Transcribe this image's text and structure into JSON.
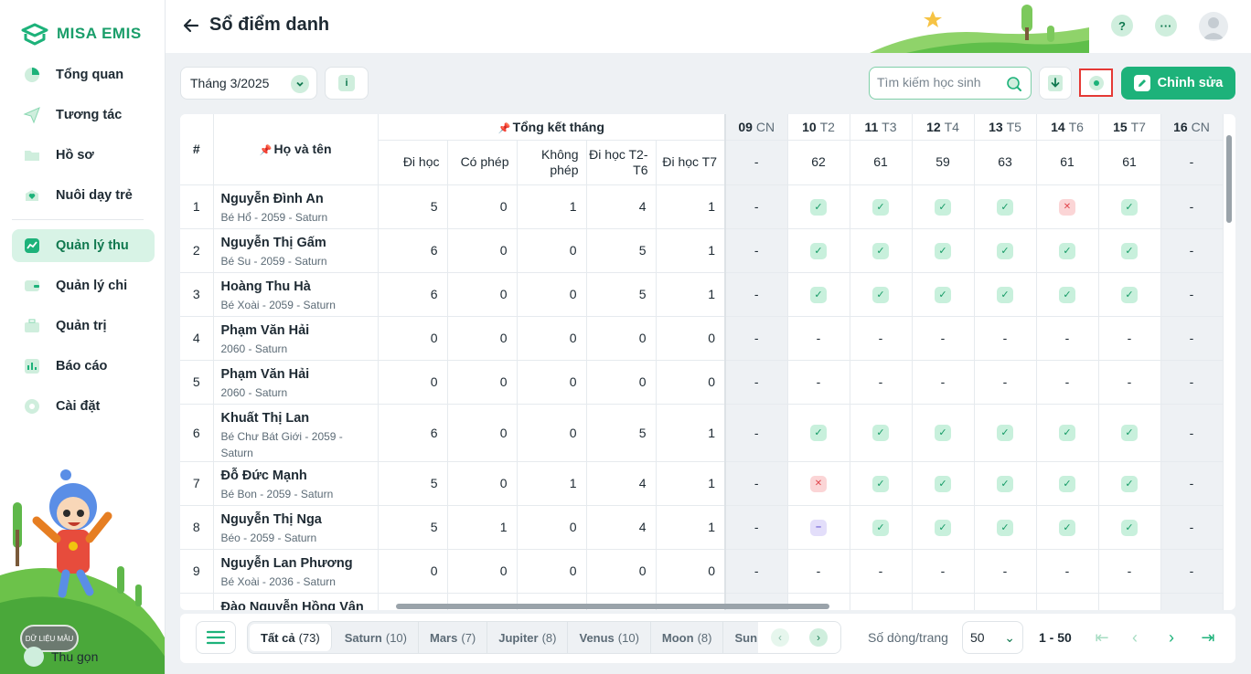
{
  "app": {
    "brand": "MISA EMIS"
  },
  "sidebar": {
    "items": [
      {
        "label": "Tổng quan",
        "icon": "pie-chart-icon"
      },
      {
        "label": "Tương tác",
        "icon": "paper-plane-icon"
      },
      {
        "label": "Hồ sơ",
        "icon": "folder-icon"
      },
      {
        "label": "Nuôi dạy trẻ",
        "icon": "heart-icon"
      },
      {
        "label": "Quản lý thu",
        "icon": "trend-chart-icon",
        "active": true
      },
      {
        "label": "Quản lý chi",
        "icon": "wallet-icon"
      },
      {
        "label": "Quản trị",
        "icon": "briefcase-icon"
      },
      {
        "label": "Báo cáo",
        "icon": "bar-chart-icon"
      },
      {
        "label": "Cài đặt",
        "icon": "gear-icon"
      }
    ],
    "collapse_label": "Thu gọn",
    "watermark": "DỮ LIỆU MẪU"
  },
  "header": {
    "title": "Sổ điểm danh",
    "help": "?",
    "more": "···"
  },
  "toolbar": {
    "month": "Tháng 3/2025",
    "info": "i",
    "search_placeholder": "Tìm kiếm học sinh",
    "edit_label": "Chỉnh sửa"
  },
  "table": {
    "col_index": "#",
    "col_name": "Họ và tên",
    "summary_group": "Tổng kết tháng",
    "summary_cols": [
      "Đi học",
      "Có phép",
      "Không phép",
      "Đi học T2-T6",
      "Đi học T7"
    ],
    "days": [
      {
        "num": "09",
        "name": "CN",
        "total": "-",
        "sunday": true
      },
      {
        "num": "10",
        "name": "T2",
        "total": "62"
      },
      {
        "num": "11",
        "name": "T3",
        "total": "61"
      },
      {
        "num": "12",
        "name": "T4",
        "total": "59"
      },
      {
        "num": "13",
        "name": "T5",
        "total": "63"
      },
      {
        "num": "14",
        "name": "T6",
        "total": "61"
      },
      {
        "num": "15",
        "name": "T7",
        "total": "61"
      },
      {
        "num": "16",
        "name": "CN",
        "total": "-",
        "sunday": true
      }
    ],
    "rows": [
      {
        "idx": "1",
        "name": "Nguyễn Đình An",
        "sub": "Bé Hổ - 2059 - Saturn",
        "vals": [
          "5",
          "0",
          "1",
          "4",
          "1"
        ],
        "att": [
          "-",
          "v",
          "v",
          "v",
          "v",
          "x",
          "v",
          "-"
        ]
      },
      {
        "idx": "2",
        "name": "Nguyễn Thị Gấm",
        "sub": "Bé Su - 2059 - Saturn",
        "vals": [
          "6",
          "0",
          "0",
          "5",
          "1"
        ],
        "att": [
          "-",
          "v",
          "v",
          "v",
          "v",
          "v",
          "v",
          "-"
        ]
      },
      {
        "idx": "3",
        "name": "Hoàng Thu Hà",
        "sub": "Bé Xoài - 2059 - Saturn",
        "vals": [
          "6",
          "0",
          "0",
          "5",
          "1"
        ],
        "att": [
          "-",
          "v",
          "v",
          "v",
          "v",
          "v",
          "v",
          "-"
        ]
      },
      {
        "idx": "4",
        "name": "Phạm Văn Hải",
        "sub": "2060 - Saturn",
        "vals": [
          "0",
          "0",
          "0",
          "0",
          "0"
        ],
        "att": [
          "-",
          "-",
          "-",
          "-",
          "-",
          "-",
          "-",
          "-"
        ]
      },
      {
        "idx": "5",
        "name": "Phạm Văn Hải",
        "sub": "2060 - Saturn",
        "vals": [
          "0",
          "0",
          "0",
          "0",
          "0"
        ],
        "att": [
          "-",
          "-",
          "-",
          "-",
          "-",
          "-",
          "-",
          "-"
        ]
      },
      {
        "idx": "6",
        "name": "Khuất Thị Lan",
        "sub": "Bé Chư Bát Giới - 2059 - Saturn",
        "vals": [
          "6",
          "0",
          "0",
          "5",
          "1"
        ],
        "att": [
          "-",
          "v",
          "v",
          "v",
          "v",
          "v",
          "v",
          "-"
        ],
        "tall": true
      },
      {
        "idx": "7",
        "name": "Đỗ Đức Mạnh",
        "sub": "Bé Bon - 2059 - Saturn",
        "vals": [
          "5",
          "0",
          "1",
          "4",
          "1"
        ],
        "att": [
          "-",
          "x",
          "v",
          "v",
          "v",
          "v",
          "v",
          "-"
        ]
      },
      {
        "idx": "8",
        "name": "Nguyễn Thị Nga",
        "sub": "Béo - 2059 - Saturn",
        "vals": [
          "5",
          "1",
          "0",
          "4",
          "1"
        ],
        "att": [
          "-",
          "p",
          "v",
          "v",
          "v",
          "v",
          "v",
          "-"
        ]
      },
      {
        "idx": "9",
        "name": "Nguyễn Lan Phương",
        "sub": "Bé Xoài - 2036 - Saturn",
        "vals": [
          "0",
          "0",
          "0",
          "0",
          "0"
        ],
        "att": [
          "-",
          "-",
          "-",
          "-",
          "-",
          "-",
          "-",
          "-"
        ]
      },
      {
        "idx": "10",
        "name": "Đào Nguyễn Hồng Vân",
        "sub": "",
        "vals": [
          "",
          "",
          "",
          "",
          ""
        ],
        "att": [
          "",
          "",
          "",
          "",
          "",
          "",
          "",
          ""
        ]
      }
    ]
  },
  "footer": {
    "tabs": [
      {
        "label": "Tất cả",
        "count": "(73)",
        "active": true
      },
      {
        "label": "Saturn",
        "count": "(10)"
      },
      {
        "label": "Mars",
        "count": "(7)"
      },
      {
        "label": "Jupiter",
        "count": "(8)"
      },
      {
        "label": "Venus",
        "count": "(10)"
      },
      {
        "label": "Moon",
        "count": "(8)"
      },
      {
        "label": "Sun",
        "count": ""
      }
    ],
    "rows_label": "Số dòng/trang",
    "rows_value": "50",
    "range": "1 - 50"
  }
}
